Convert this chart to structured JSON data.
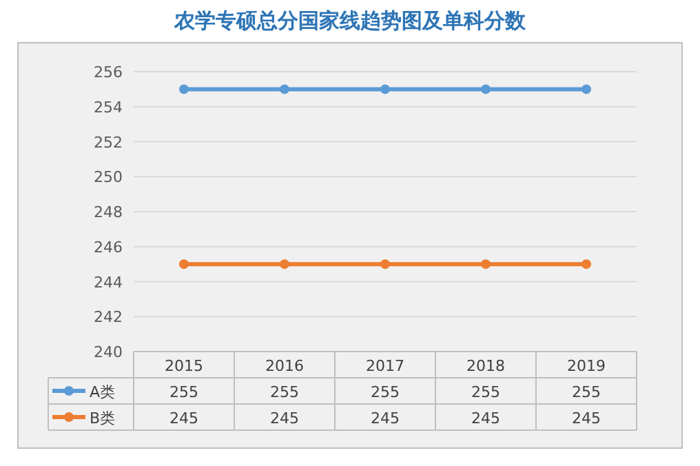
{
  "chart_data": {
    "type": "line",
    "title": "农学专硕总分国家线趋势图及单科分数",
    "categories": [
      "2015",
      "2016",
      "2017",
      "2018",
      "2019"
    ],
    "series": [
      {
        "name": "A类",
        "color": "#5b9bd5",
        "values": [
          255,
          255,
          255,
          255,
          255
        ]
      },
      {
        "name": "B类",
        "color": "#ed7d31",
        "values": [
          245,
          245,
          245,
          245,
          245
        ]
      }
    ],
    "ylim": [
      240,
      256
    ],
    "yticks": [
      240,
      242,
      244,
      246,
      248,
      250,
      252,
      254,
      256
    ],
    "grid": "y",
    "data_labels": true,
    "legend": "bottom",
    "marker": "circle"
  }
}
